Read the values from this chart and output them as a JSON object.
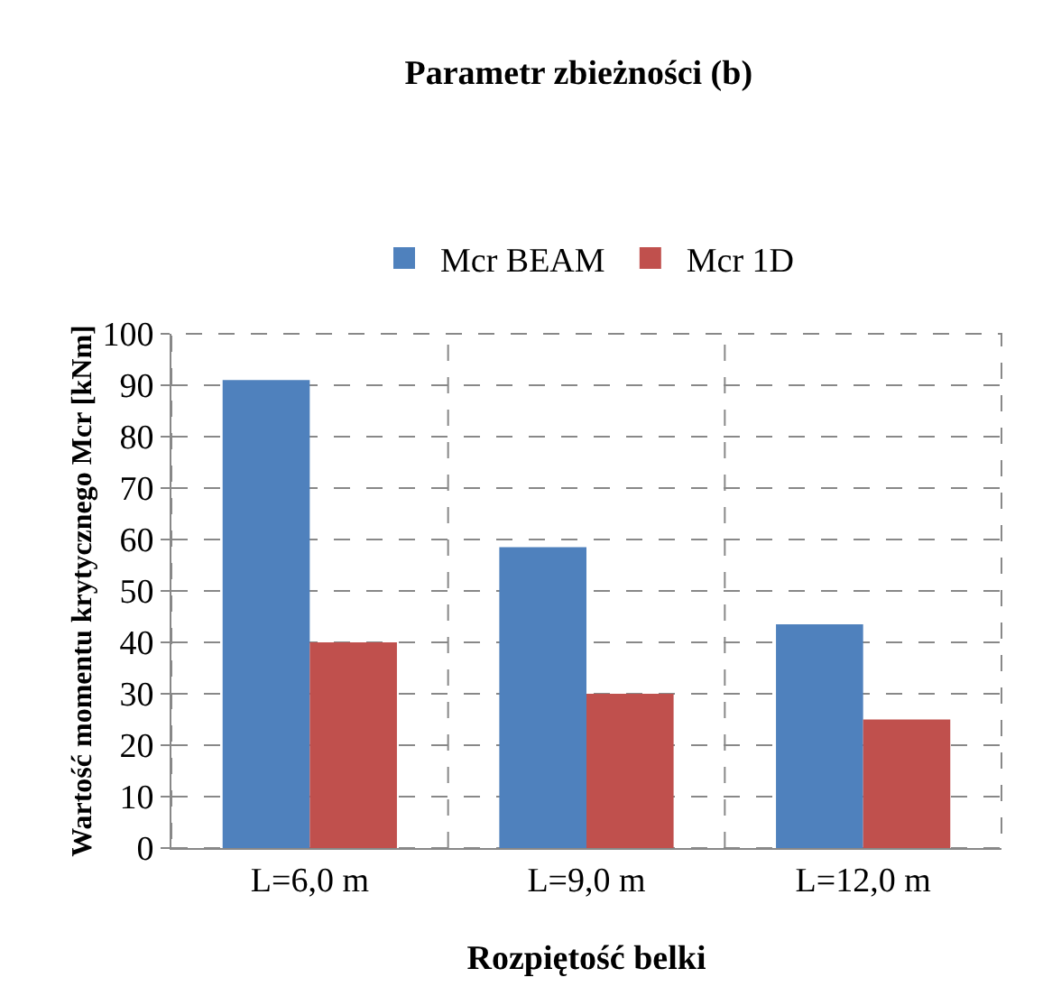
{
  "chart_data": {
    "type": "bar",
    "title": "Parametr zbieżności (b)",
    "xlabel": "Rozpiętość belki",
    "ylabel": "Wartość momentu krytycznego Mcr [kNm]",
    "categories": [
      "L=6,0 m",
      "L=9,0 m",
      "L=12,0 m"
    ],
    "series": [
      {
        "name": "Mcr BEAM",
        "color": "#4f81bd",
        "values": [
          91,
          58.5,
          43.5
        ]
      },
      {
        "name": "Mcr 1D",
        "color": "#c0504d",
        "values": [
          40,
          30,
          25
        ]
      }
    ],
    "ylim": [
      0,
      100
    ],
    "yticks": [
      0,
      10,
      20,
      30,
      40,
      50,
      60,
      70,
      80,
      90,
      100
    ],
    "grid": true,
    "legend": "top"
  }
}
